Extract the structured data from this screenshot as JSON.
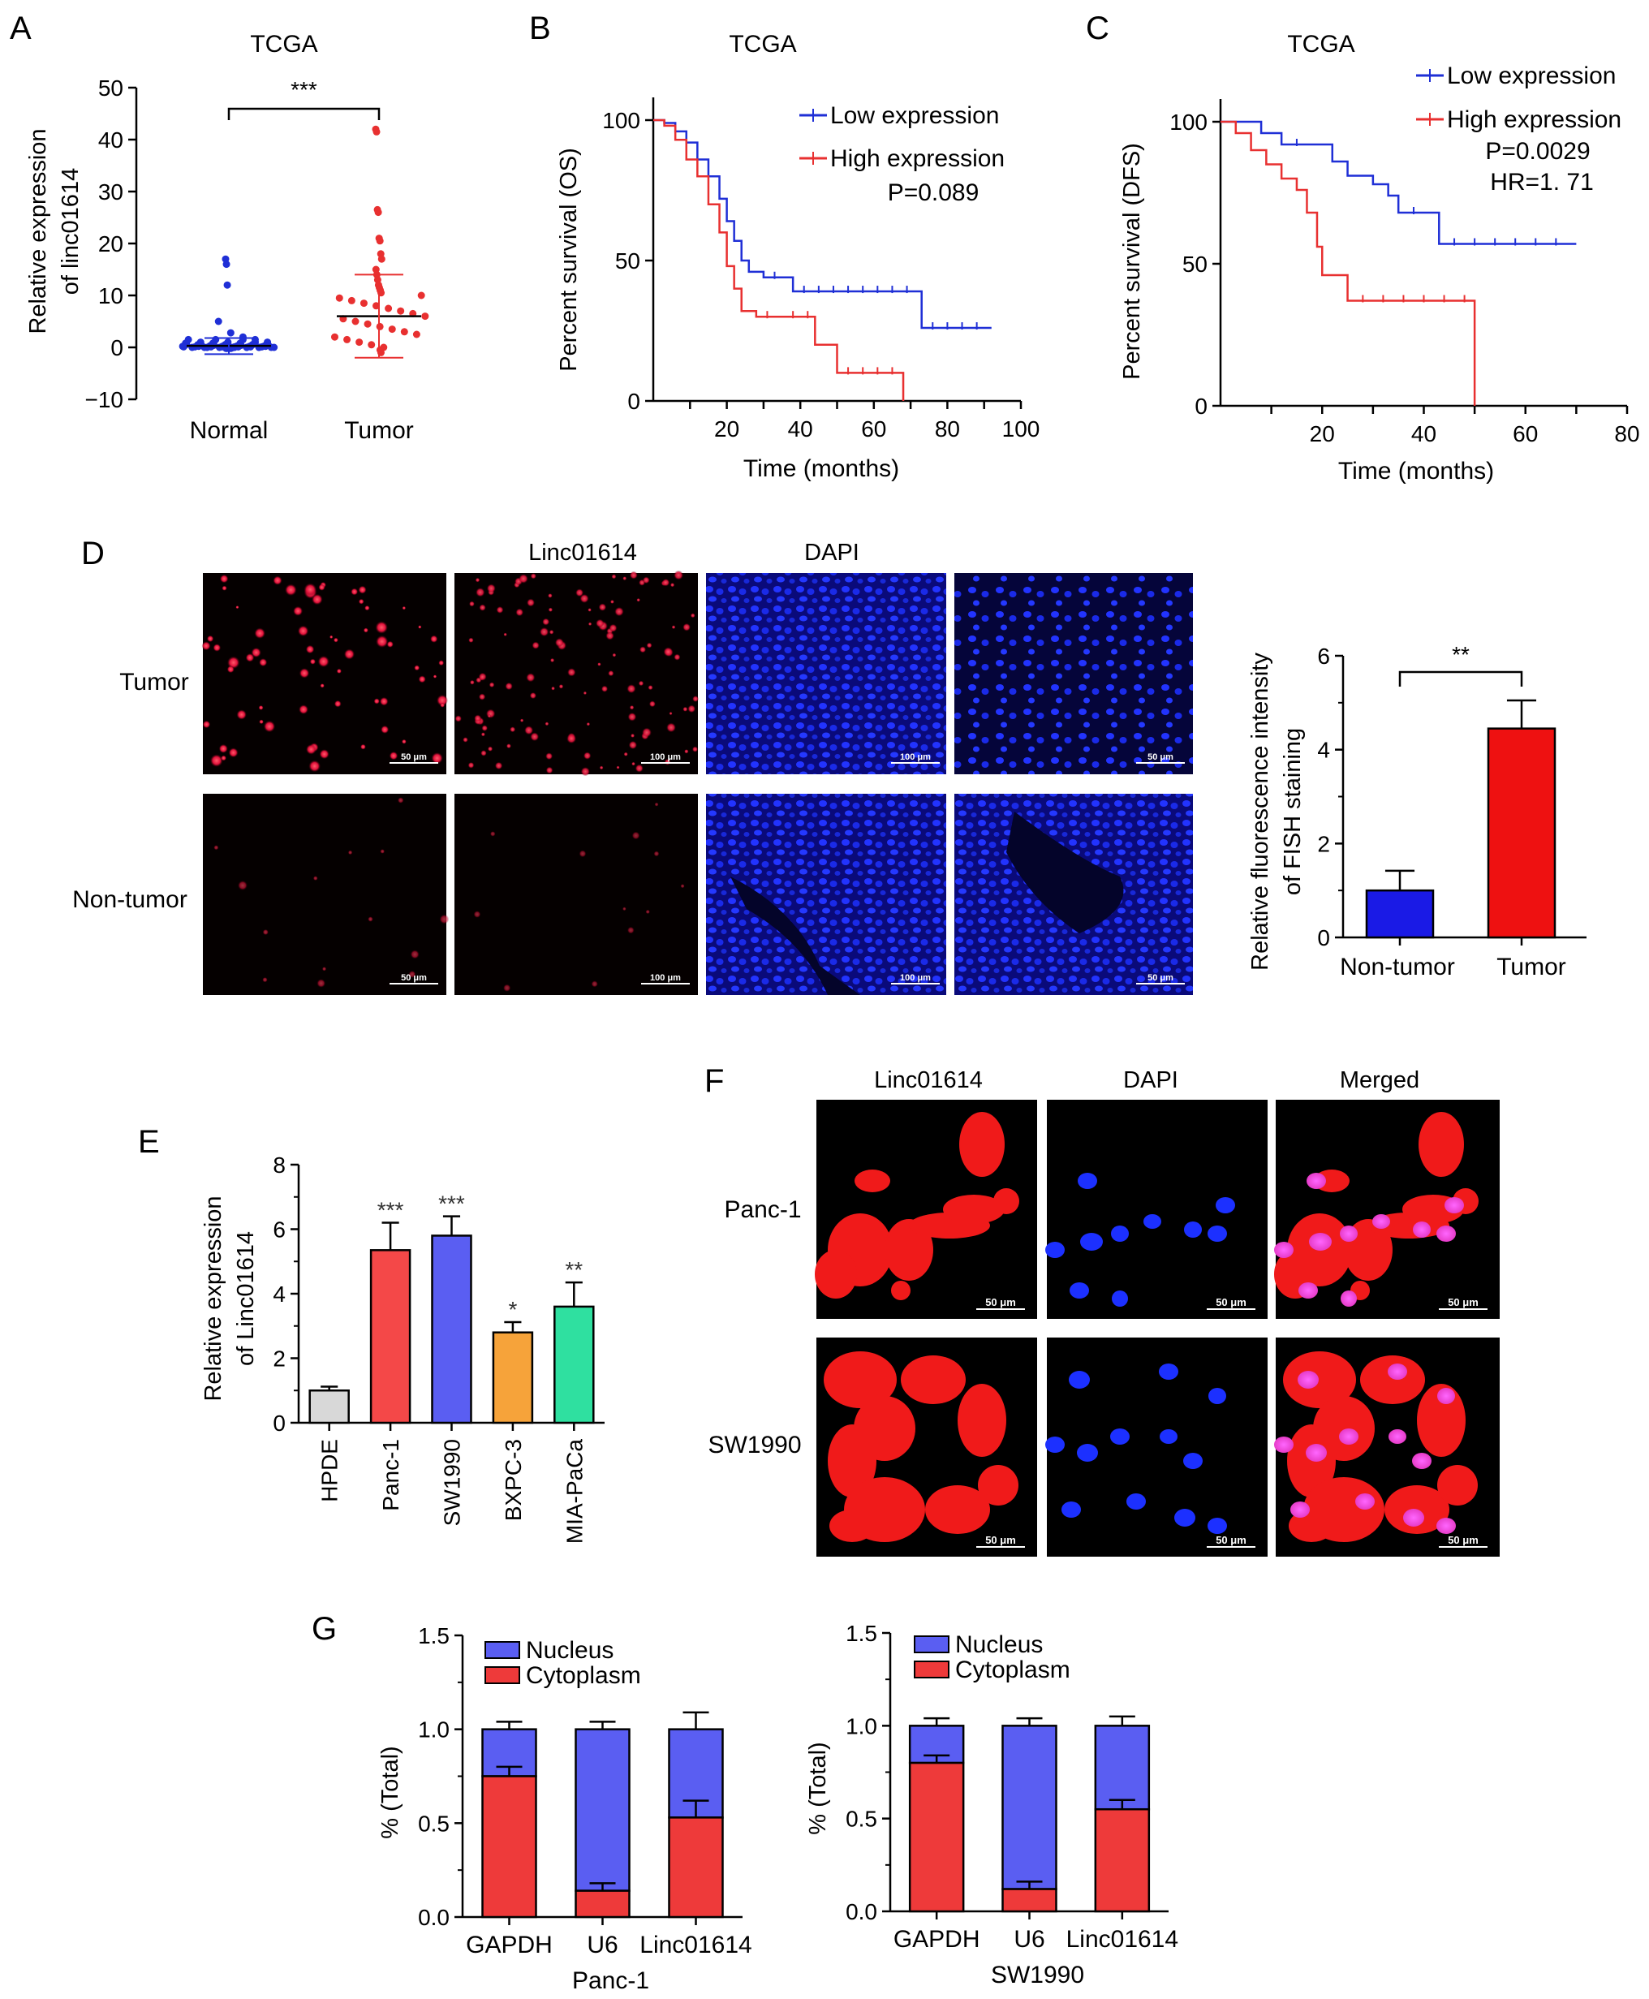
{
  "chart_data": [
    {
      "panel": "A",
      "type": "scatter",
      "title": "TCGA",
      "ylabel": "Relative expression\nof linc01614",
      "categories": [
        "Normal",
        "Tumor"
      ],
      "yticks": [
        "50",
        "40",
        "30",
        "20",
        "10",
        "0",
        "−10"
      ],
      "ylim": [
        -10,
        50
      ],
      "significance": "***",
      "series": [
        {
          "name": "Normal",
          "color": "#1f2fd6",
          "mean": 0.3,
          "sd_low": -1.3,
          "sd_high": 1.8,
          "points": [
            17,
            16,
            12,
            5,
            2.8,
            2,
            1.5,
            1,
            0.8,
            0.5,
            0.3,
            0.2,
            0.1,
            0,
            0,
            0,
            -0.1,
            -0.2,
            0.4,
            0.6,
            0.2,
            0.1
          ]
        },
        {
          "name": "Tumor",
          "color": "#e83030",
          "mean": 6,
          "sd_low": -2,
          "sd_high": 14,
          "points": [
            42,
            41.5,
            26.5,
            26,
            21,
            20.5,
            18,
            17,
            15,
            14,
            13,
            12,
            11.5,
            11,
            10.5,
            10,
            9.5,
            9,
            8.5,
            8,
            7.5,
            7,
            6.5,
            6,
            5.5,
            5,
            4.5,
            4,
            3.5,
            3,
            2.5,
            2,
            1.5,
            1,
            0.5,
            0,
            -0.5,
            -1
          ]
        }
      ]
    },
    {
      "panel": "B",
      "type": "line",
      "title": "TCGA",
      "xlabel": "Time (months)",
      "ylabel": "Percent survival (OS)",
      "xticks": [
        "20",
        "40",
        "60",
        "80",
        "100"
      ],
      "yticks": [
        "100",
        "50",
        "0"
      ],
      "xlim": [
        0,
        100
      ],
      "ylim": [
        0,
        100
      ],
      "annotation": "P=0.089",
      "series": [
        {
          "name": "Low expression",
          "color": "#1f2fd6",
          "points": [
            [
              0,
              100
            ],
            [
              3,
              99
            ],
            [
              6,
              96
            ],
            [
              9,
              92
            ],
            [
              12,
              86
            ],
            [
              15,
              80
            ],
            [
              18,
              72
            ],
            [
              20,
              64
            ],
            [
              22,
              57
            ],
            [
              24,
              50
            ],
            [
              26,
              46
            ],
            [
              30,
              44
            ],
            [
              38,
              39
            ],
            [
              72,
              39
            ],
            [
              73,
              26
            ],
            [
              92,
              26
            ]
          ]
        },
        {
          "name": "High expression",
          "color": "#e83030",
          "points": [
            [
              0,
              100
            ],
            [
              3,
              98
            ],
            [
              6,
              93
            ],
            [
              9,
              86
            ],
            [
              12,
              80
            ],
            [
              15,
              70
            ],
            [
              18,
              60
            ],
            [
              20,
              48
            ],
            [
              22,
              40
            ],
            [
              24,
              32
            ],
            [
              28,
              30
            ],
            [
              35,
              30
            ],
            [
              44,
              20
            ],
            [
              50,
              10
            ],
            [
              68,
              10
            ],
            [
              68,
              0
            ]
          ]
        }
      ]
    },
    {
      "panel": "C",
      "type": "line",
      "title": "TCGA",
      "xlabel": "Time (months)",
      "ylabel": "Percent survival (DFS)",
      "xticks": [
        "20",
        "40",
        "60",
        "80"
      ],
      "yticks": [
        "100",
        "50",
        "0"
      ],
      "xlim": [
        0,
        80
      ],
      "ylim": [
        0,
        100
      ],
      "annotation": "P=0.0029",
      "annotation2": "HR=1. 71",
      "series": [
        {
          "name": "Low expression",
          "color": "#1f2fd6",
          "points": [
            [
              0,
              100
            ],
            [
              5,
              100
            ],
            [
              8,
              96
            ],
            [
              12,
              92
            ],
            [
              20,
              92
            ],
            [
              22,
              86
            ],
            [
              25,
              81
            ],
            [
              30,
              78
            ],
            [
              33,
              74
            ],
            [
              35,
              68
            ],
            [
              42,
              68
            ],
            [
              43,
              57
            ],
            [
              70,
              57
            ]
          ]
        },
        {
          "name": "High expression",
          "color": "#e83030",
          "points": [
            [
              0,
              100
            ],
            [
              3,
              96
            ],
            [
              6,
              90
            ],
            [
              9,
              85
            ],
            [
              12,
              80
            ],
            [
              15,
              76
            ],
            [
              17,
              68
            ],
            [
              19,
              56
            ],
            [
              20,
              46
            ],
            [
              24,
              46
            ],
            [
              25,
              37
            ],
            [
              50,
              37
            ],
            [
              50,
              0
            ]
          ]
        }
      ]
    },
    {
      "panel": "D",
      "type": "bar",
      "ylabel": "Relative fluorescence intensity\nof FISH staining",
      "categories": [
        "Non-tumor",
        "Tumor"
      ],
      "values": [
        1.0,
        4.45
      ],
      "errors": [
        0.42,
        0.6
      ],
      "colors": [
        "#1a1ae6",
        "#ee1111"
      ],
      "yticks": [
        "6",
        "4",
        "2",
        "0"
      ],
      "ylim": [
        0,
        6
      ],
      "significance": "**"
    },
    {
      "panel": "E",
      "type": "bar",
      "ylabel": "Relative expression\nof Linc01614",
      "categories": [
        "HPDE",
        "Panc-1",
        "SW1990",
        "BXPC-3",
        "MIA-PaCa"
      ],
      "values": [
        1.0,
        5.35,
        5.8,
        2.8,
        3.6
      ],
      "errors": [
        0.12,
        0.85,
        0.6,
        0.32,
        0.75
      ],
      "colors": [
        "#d8d8d8",
        "#f44848",
        "#5a5ef2",
        "#f6a33a",
        "#2fe0a0"
      ],
      "significance": [
        "",
        "***",
        "***",
        "*",
        "**"
      ],
      "yticks": [
        "8",
        "6",
        "4",
        "2",
        "0"
      ],
      "ylim": [
        0,
        8
      ]
    },
    {
      "panel": "G",
      "type": "bar",
      "stacked": true,
      "subcharts": [
        {
          "xlabel": "Panc-1",
          "ylabel": "% (Total)",
          "categories": [
            "GAPDH",
            "U6",
            "Linc01614"
          ],
          "yticks": [
            "1.5",
            "1.0",
            "0.5",
            "0.0"
          ],
          "ylim": [
            0,
            1.5
          ],
          "series": [
            {
              "name": "Nucleus",
              "color": "#5a5ef2",
              "values": [
                0.25,
                0.86,
                0.47
              ],
              "errors": [
                0.04,
                0.04,
                0.09
              ]
            },
            {
              "name": "Cytoplasm",
              "color": "#ee3a3a",
              "values": [
                0.75,
                0.14,
                0.53
              ],
              "errors": [
                0.05,
                0.04,
                0.09
              ]
            }
          ]
        },
        {
          "xlabel": "SW1990",
          "ylabel": "% (Total)",
          "categories": [
            "GAPDH",
            "U6",
            "Linc01614"
          ],
          "yticks": [
            "1.5",
            "1.0",
            "0.5",
            "0.0"
          ],
          "ylim": [
            0,
            1.5
          ],
          "series": [
            {
              "name": "Nucleus",
              "color": "#5a5ef2",
              "values": [
                0.2,
                0.88,
                0.45
              ],
              "errors": [
                0.04,
                0.04,
                0.05
              ]
            },
            {
              "name": "Cytoplasm",
              "color": "#ee3a3a",
              "values": [
                0.8,
                0.12,
                0.55
              ],
              "errors": [
                0.04,
                0.04,
                0.05
              ]
            }
          ]
        }
      ]
    }
  ],
  "panels": {
    "A": "A",
    "B": "B",
    "C": "C",
    "D": "D",
    "E": "E",
    "F": "F",
    "G": "G"
  },
  "panel_d": {
    "col_label_1": "Linc01614",
    "col_label_2": "DAPI",
    "row_labels": [
      "Tumor",
      "Non-tumor"
    ],
    "scalebars": [
      "50 μm",
      "100 μm",
      "100 μm",
      "50 μm"
    ]
  },
  "panel_f": {
    "col_labels": [
      "Linc01614",
      "DAPI",
      "Merged"
    ],
    "row_labels": [
      "Panc-1",
      "SW1990"
    ],
    "scalebar": "50 μm"
  }
}
